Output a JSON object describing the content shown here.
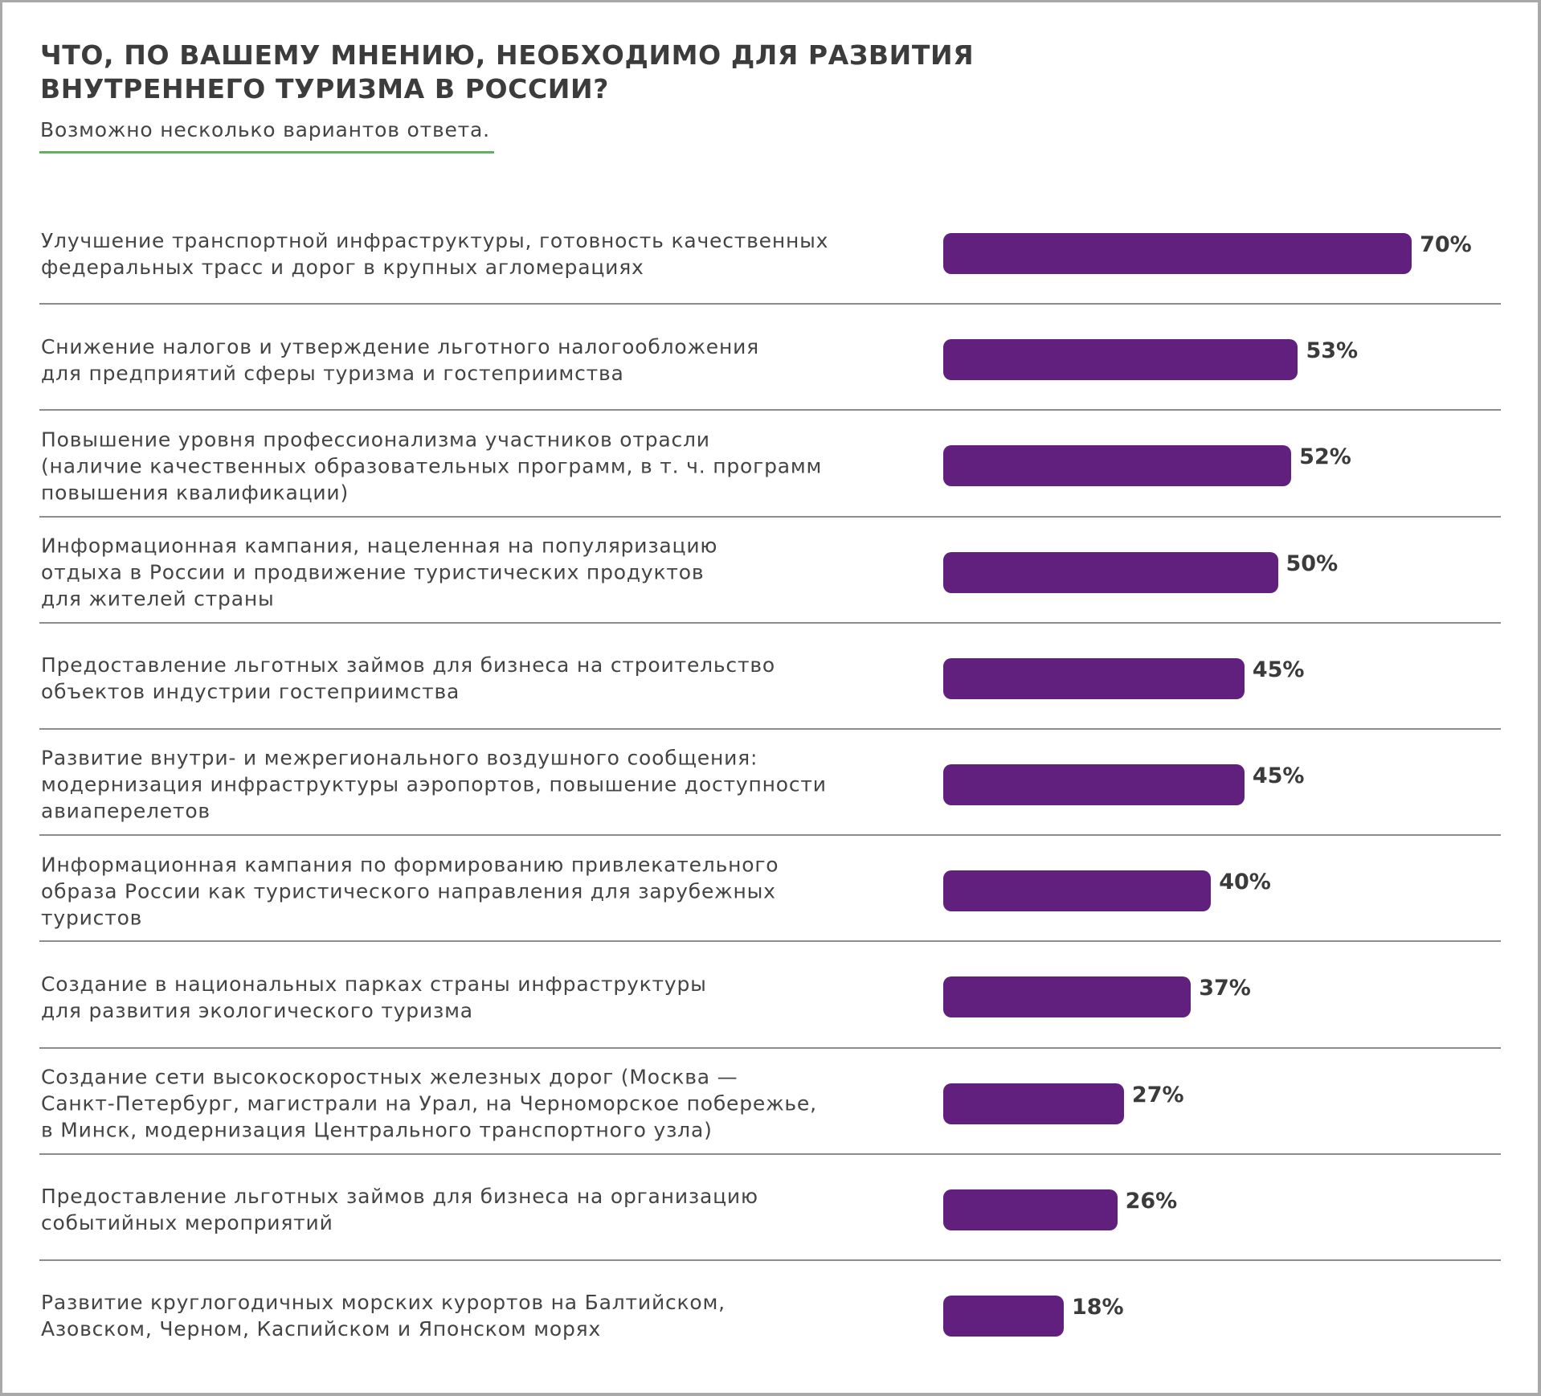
{
  "header": {
    "title_lines": [
      "ЧТО, ПО ВАШЕМУ МНЕНИЮ, НЕОБХОДИМО ДЛЯ РАЗВИТИЯ",
      "ВНУТРЕННЕГО ТУРИЗМА В РОССИИ?"
    ],
    "subtitle": "Возможно несколько вариантов ответа."
  },
  "colors": {
    "bar": "#62207e",
    "accent_rule": "#63b063",
    "text": "#444444",
    "divider": "#8c8c8c"
  },
  "chart_data": {
    "type": "bar",
    "orientation": "horizontal",
    "title": "ЧТО, ПО ВАШЕМУ МНЕНИЮ, НЕОБХОДИМО ДЛЯ РАЗВИТИЯ ВНУТРЕННЕГО ТУРИЗМА В РОССИИ?",
    "subtitle": "Возможно несколько вариантов ответа.",
    "xlabel": "",
    "ylabel": "",
    "value_unit": "%",
    "grid": false,
    "legend": "none",
    "categories": [
      "Улучшение транспортной инфраструктуры, готовность качественных федеральных трасс и дорог в крупных агломерациях",
      "Снижение налогов и утверждение льготного налогообложения для предприятий сферы туризма и гостеприимства",
      "Повышение уровня профессионализма участников отрасли (наличие качественных образовательных программ, в т. ч. программ повышения квалификации)",
      "Информационная кампания, нацеленная на популяризацию отдыха в России и продвижение туристических продуктов для жителей страны",
      "Предоставление льготных займов для бизнеса на строительство объектов индустрии гостеприимства",
      "Развитие внутри- и межрегионального воздушного сообщения: модернизация инфраструктуры аэропортов, повышение доступности авиаперелетов",
      "Информационная кампания по формированию привлекательного образа России как туристического направления для зарубежных туристов",
      "Создание в национальных парках страны инфраструктуры для развития экологического туризма",
      "Создание сети высокоскоростных железных дорог (Москва — Санкт-Петербург, магистрали на Урал, на Черноморское побережье, в Минск, модернизация Центрального транспортного узла)",
      "Предоставление льготных займов для бизнеса на организацию событийных мероприятий",
      "Развитие круглогодичных морских курортов на Балтийском, Азовском, Черном, Каспийском и Японском морях"
    ],
    "category_lines": [
      [
        "Улучшение транспортной инфраструктуры, готовность качественных",
        "федеральных трасс и дорог в крупных агломерациях"
      ],
      [
        "Снижение налогов и утверждение льготного налогообложения",
        "для предприятий сферы туризма и гостеприимства"
      ],
      [
        "Повышение уровня профессионализма участников отрасли",
        "(наличие качественных образовательных программ, в т. ч. программ",
        "повышения квалификации)"
      ],
      [
        "Информационная кампания, нацеленная на популяризацию",
        "отдыха в России и продвижение туристических продуктов",
        "для жителей страны"
      ],
      [
        "Предоставление льготных займов для бизнеса на строительство",
        "объектов индустрии гостеприимства"
      ],
      [
        "Развитие внутри- и межрегионального воздушного сообщения:",
        "модернизация инфраструктуры аэропортов, повышение доступности",
        "авиаперелетов"
      ],
      [
        "Информационная кампания по формированию привлекательного",
        "образа России как туристического направления для зарубежных",
        "туристов"
      ],
      [
        "Создание в национальных парках страны инфраструктуры",
        "для развития экологического туризма"
      ],
      [
        "Создание сети высокоскоростных железных дорог (Москва —",
        "Санкт-Петербург, магистрали на Урал, на Черноморское побережье,",
        "в Минск, модернизация Центрального транспортного узла)"
      ],
      [
        "Предоставление льготных займов для бизнеса на организацию",
        "событийных мероприятий"
      ],
      [
        "Развитие круглогодичных морских курортов на Балтийском,",
        "Азовском, Черном, Каспийском и Японском морях"
      ]
    ],
    "values": [
      70,
      53,
      52,
      50,
      45,
      45,
      40,
      37,
      27,
      26,
      18
    ],
    "data_labels": [
      "70%",
      "53%",
      "52%",
      "50%",
      "45%",
      "45%",
      "40%",
      "37%",
      "27%",
      "26%",
      "18%"
    ]
  }
}
